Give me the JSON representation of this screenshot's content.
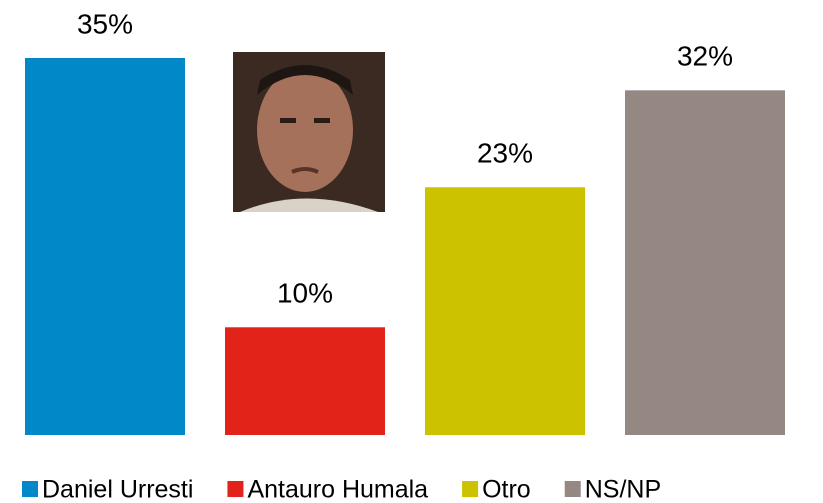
{
  "chart_data": {
    "type": "bar",
    "series": [
      {
        "name": "Daniel Urresti",
        "color": "#0088C8",
        "values": [
          35
        ],
        "value_labels": [
          "35%"
        ]
      },
      {
        "name": "Antauro Humala",
        "color": "#E2231A",
        "values": [
          10
        ],
        "value_labels": [
          "10%"
        ]
      },
      {
        "name": "Otro",
        "color": "#CCC200",
        "values": [
          23
        ],
        "value_labels": [
          "23%"
        ]
      },
      {
        "name": "NS/NP",
        "color": "#958883",
        "values": [
          32
        ],
        "value_labels": [
          "32%"
        ]
      }
    ],
    "legend": "bottom"
  }
}
